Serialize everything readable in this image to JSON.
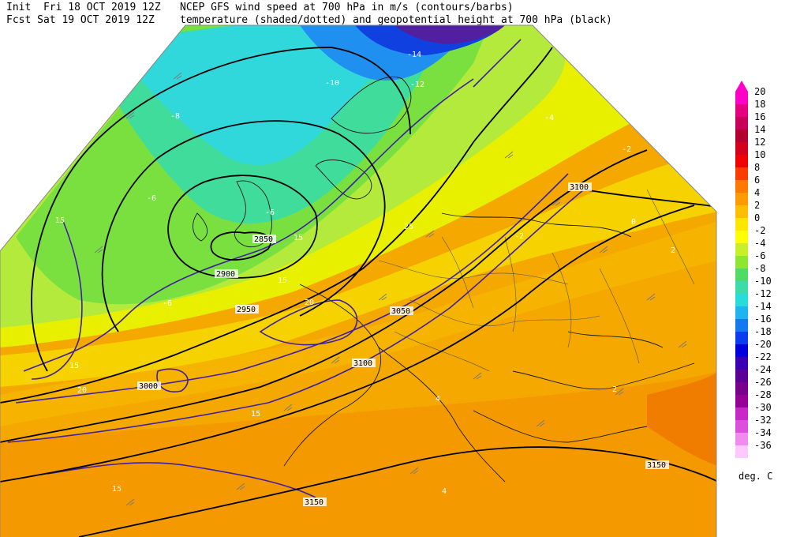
{
  "header": {
    "init_line": "Init  Fri 18 OCT 2019 12Z",
    "fcst_line": "Fcst Sat 19 OCT 2019 12Z",
    "title_line1": "NCEP GFS wind speed at 700 hPa in m/s (contours/barbs)",
    "title_line2": "temperature (shaded/dotted) and geopotential height at 700 hPa (black)"
  },
  "colorbar": {
    "units": "deg. C",
    "levels": [
      {
        "label": "20",
        "color": "#ff00c8"
      },
      {
        "label": "18",
        "color": "#e6007f"
      },
      {
        "label": "16",
        "color": "#c8005a"
      },
      {
        "label": "14",
        "color": "#b40030"
      },
      {
        "label": "12",
        "color": "#d2001e"
      },
      {
        "label": "10",
        "color": "#f00000"
      },
      {
        "label": "8",
        "color": "#ff3c00"
      },
      {
        "label": "6",
        "color": "#ff7800"
      },
      {
        "label": "4",
        "color": "#ff9b00"
      },
      {
        "label": "2",
        "color": "#ffbe00"
      },
      {
        "label": "0",
        "color": "#ffe600"
      },
      {
        "label": "-2",
        "color": "#ffff00"
      },
      {
        "label": "-4",
        "color": "#c8f028"
      },
      {
        "label": "-6",
        "color": "#8ce632"
      },
      {
        "label": "-8",
        "color": "#50dc64"
      },
      {
        "label": "-10",
        "color": "#3cdcaa"
      },
      {
        "label": "-12",
        "color": "#28dcdc"
      },
      {
        "label": "-14",
        "color": "#1eb4f0"
      },
      {
        "label": "-16",
        "color": "#1478f0"
      },
      {
        "label": "-18",
        "color": "#0a3cf0"
      },
      {
        "label": "-20",
        "color": "#0000dc"
      },
      {
        "label": "-22",
        "color": "#3c00b4"
      },
      {
        "label": "-24",
        "color": "#5a0096"
      },
      {
        "label": "-26",
        "color": "#78008c"
      },
      {
        "label": "-28",
        "color": "#960096"
      },
      {
        "label": "-30",
        "color": "#c828c8"
      },
      {
        "label": "-32",
        "color": "#dc50dc"
      },
      {
        "label": "-34",
        "color": "#f08cf0"
      },
      {
        "label": "-36",
        "color": "#ffc8ff"
      }
    ]
  },
  "height_labels": [
    "2850",
    "2900",
    "2950",
    "3000",
    "3050",
    "3100",
    "3150"
  ],
  "wind_labels": [
    "15",
    "20",
    "25"
  ],
  "temp_labels": [
    "-2",
    "-4",
    "-6",
    "-8",
    "-10",
    "-12",
    "-14",
    "2",
    "4",
    "0"
  ],
  "colors": {
    "warm": "#f4a800",
    "warm2": "#f7bd10",
    "yellow": "#e8f000",
    "lightgreen": "#b4ea3c",
    "green": "#7ae040",
    "teal": "#40dc9c",
    "cyan": "#30d8dc",
    "blue": "#2090f0",
    "deepblue": "#1040e0",
    "purple": "#5020a0",
    "wind": "#4020a0",
    "height": "#000000"
  }
}
